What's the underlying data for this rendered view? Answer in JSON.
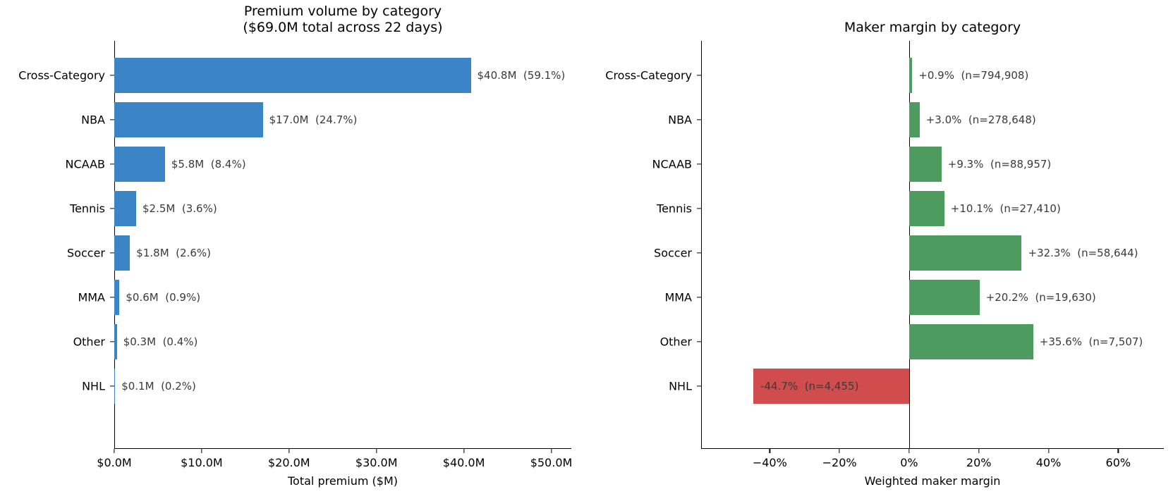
{
  "figure": {
    "background": "#ffffff"
  },
  "chart_data": [
    {
      "type": "bar",
      "orientation": "horizontal",
      "title": "Premium volume by category\n($69.0M total across 22 days)",
      "xlabel": "Total premium ($M)",
      "categories": [
        "Cross-Category",
        "NBA",
        "NCAAB",
        "Tennis",
        "Soccer",
        "MMA",
        "Other",
        "NHL"
      ],
      "values": [
        40.8,
        17.0,
        5.8,
        2.5,
        1.8,
        0.6,
        0.3,
        0.1
      ],
      "value_unit": "$M",
      "share_pct": [
        59.1,
        24.7,
        8.4,
        3.6,
        2.6,
        0.9,
        0.4,
        0.2
      ],
      "annotations": [
        "$40.8M  (59.1%)",
        "$17.0M  (24.7%)",
        "$5.8M  (8.4%)",
        "$2.5M  (3.6%)",
        "$1.8M  (2.6%)",
        "$0.6M  (0.9%)",
        "$0.3M  (0.4%)",
        "$0.1M  (0.2%)"
      ],
      "xlim": [
        0,
        52.3
      ],
      "xticks": [
        {
          "value": 0,
          "label": "$0.0M"
        },
        {
          "value": 10,
          "label": "$10.0M"
        },
        {
          "value": 20,
          "label": "$20.0M"
        },
        {
          "value": 30,
          "label": "$30.0M"
        },
        {
          "value": 40,
          "label": "$40.0M"
        },
        {
          "value": 50,
          "label": "$50.0M"
        }
      ],
      "bar_color": "#3b84c6",
      "negative_color": "#3b84c6",
      "annotation_color": "#3a3a3a",
      "grid": false,
      "zero_line": false
    },
    {
      "type": "bar",
      "orientation": "horizontal",
      "title": "Maker margin by category",
      "xlabel": "Weighted maker margin",
      "categories": [
        "Cross-Category",
        "NBA",
        "NCAAB",
        "Tennis",
        "Soccer",
        "MMA",
        "Other",
        "NHL"
      ],
      "values": [
        0.9,
        3.0,
        9.3,
        10.1,
        32.3,
        20.2,
        35.6,
        -44.7
      ],
      "value_unit": "%",
      "sample_n": [
        794908,
        278648,
        88957,
        27410,
        58644,
        19630,
        7507,
        4455
      ],
      "annotations": [
        "+0.9%  (n=794,908)",
        "+3.0%  (n=278,648)",
        "+9.3%  (n=88,957)",
        "+10.1%  (n=27,410)",
        "+32.3%  (n=58,644)",
        "+20.2%  (n=19,630)",
        "+35.6%  (n=7,507)",
        "-44.7%  (n=4,455)"
      ],
      "xlim": [
        -59.7,
        73.1
      ],
      "xticks": [
        {
          "value": -40,
          "label": "−40%"
        },
        {
          "value": -20,
          "label": "−20%"
        },
        {
          "value": 0,
          "label": "0%"
        },
        {
          "value": 20,
          "label": "20%"
        },
        {
          "value": 40,
          "label": "40%"
        },
        {
          "value": 60,
          "label": "60%"
        }
      ],
      "bar_color": "#4d9b5f",
      "negative_color": "#d04c4d",
      "annotation_color": "#3a3a3a",
      "grid": false,
      "zero_line": true
    }
  ]
}
